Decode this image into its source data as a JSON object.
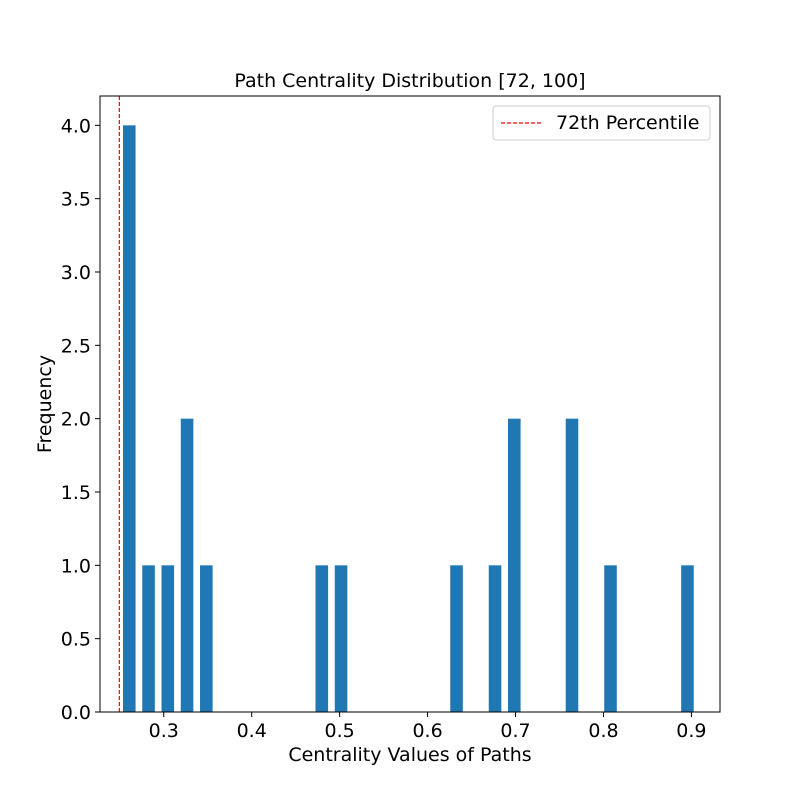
{
  "chart_data": {
    "type": "bar",
    "title": "Path Centrality Distribution [72, 100]",
    "xlabel": "Centrality Values of Paths",
    "ylabel": "Frequency",
    "xlim": [
      0.2275,
      0.9325
    ],
    "ylim": [
      0,
      4.2
    ],
    "x_ticks": [
      0.3,
      0.4,
      0.5,
      0.6,
      0.7,
      0.8,
      0.9
    ],
    "x_tick_labels": [
      "0.3",
      "0.4",
      "0.5",
      "0.6",
      "0.7",
      "0.8",
      "0.9"
    ],
    "y_ticks": [
      0.0,
      0.5,
      1.0,
      1.5,
      2.0,
      2.5,
      3.0,
      3.5,
      4.0
    ],
    "y_tick_labels": [
      "0.0",
      "0.5",
      "1.0",
      "1.5",
      "2.0",
      "2.5",
      "3.0",
      "3.5",
      "4.0"
    ],
    "bar_width": 0.0143,
    "bars": [
      {
        "x": 0.2608,
        "value": 4
      },
      {
        "x": 0.2827,
        "value": 1
      },
      {
        "x": 0.3046,
        "value": 1
      },
      {
        "x": 0.3265,
        "value": 2
      },
      {
        "x": 0.3484,
        "value": 1
      },
      {
        "x": 0.4797,
        "value": 1
      },
      {
        "x": 0.5016,
        "value": 1
      },
      {
        "x": 0.6329,
        "value": 1
      },
      {
        "x": 0.6767,
        "value": 1
      },
      {
        "x": 0.6986,
        "value": 2
      },
      {
        "x": 0.7642,
        "value": 2
      },
      {
        "x": 0.808,
        "value": 1
      },
      {
        "x": 0.8955,
        "value": 1
      }
    ],
    "bar_color": "#1f77b4",
    "reference_line": {
      "x": 0.2495,
      "color": "#ff0000",
      "style": "dashed",
      "label": "72th Percentile"
    },
    "legend": {
      "position": "top-right",
      "entries": [
        "72th Percentile"
      ]
    },
    "grid": false
  }
}
